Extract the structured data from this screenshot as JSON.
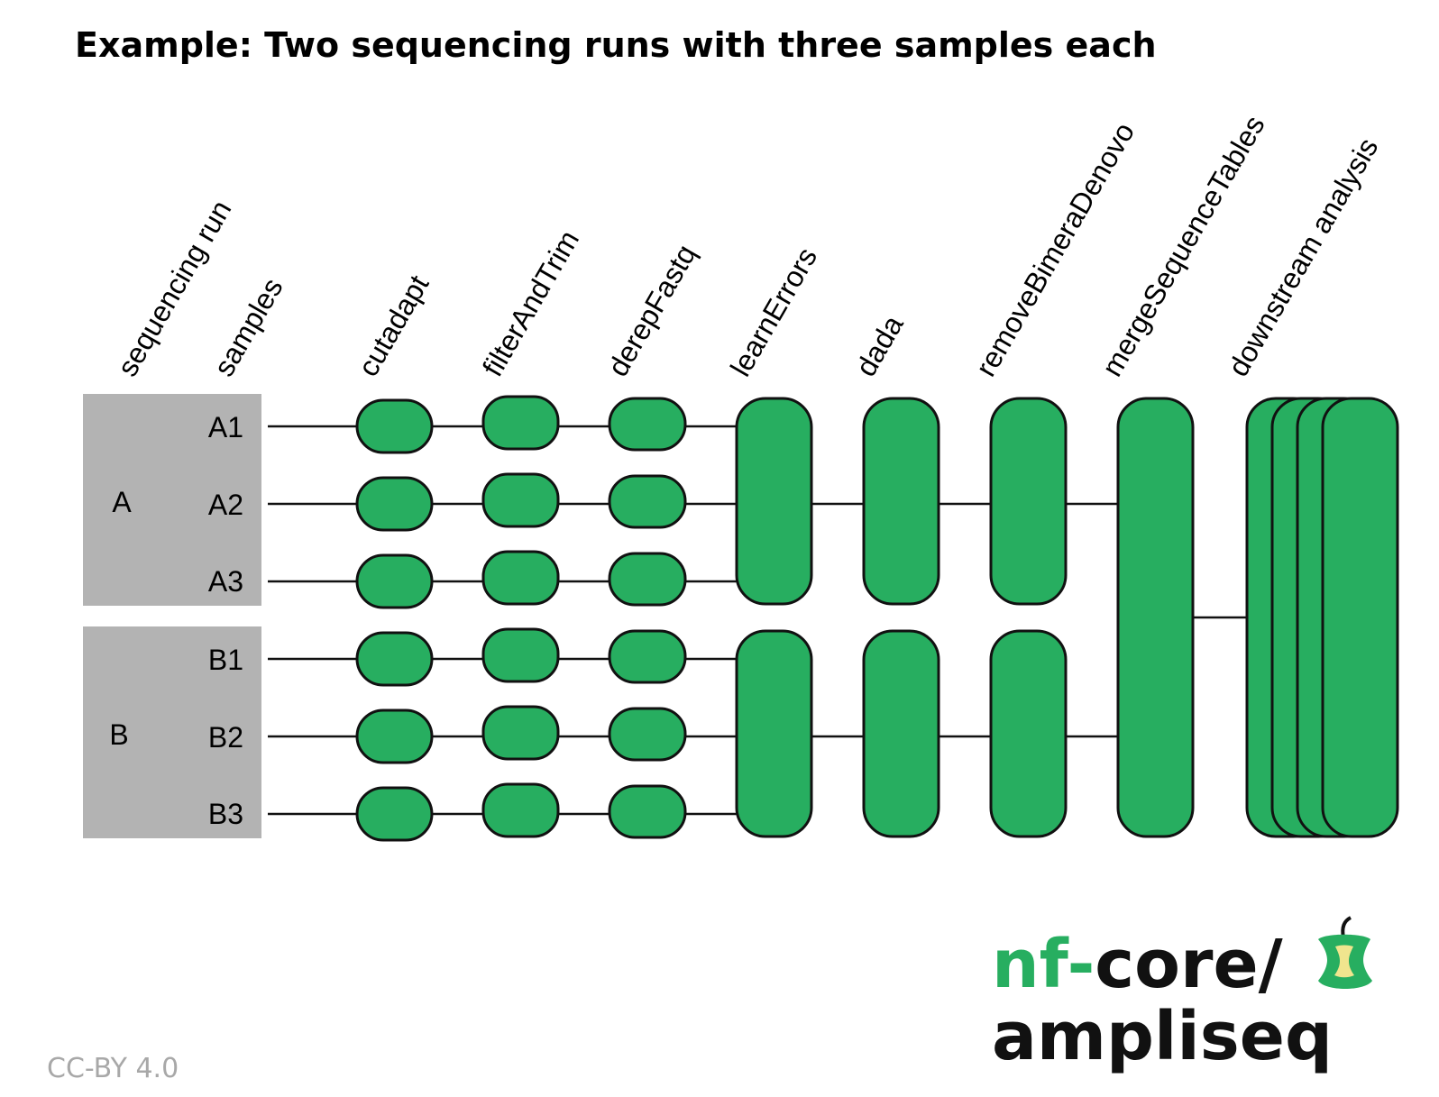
{
  "title": "Example: Two sequencing runs with three samples each",
  "columns": {
    "run": "sequencing run",
    "samples": "samples",
    "steps": [
      "cutadapt",
      "filterAndTrim",
      "derepFastq",
      "learnErrors",
      "dada",
      "removeBimeraDenovo",
      "mergeSequenceTables",
      "downstream analysis"
    ]
  },
  "runs": [
    {
      "name": "A",
      "samples": [
        "A1",
        "A2",
        "A3"
      ]
    },
    {
      "name": "B",
      "samples": [
        "B1",
        "B2",
        "B3"
      ]
    }
  ],
  "logo": {
    "prefix": "nf-",
    "suffix": "core/",
    "line2": "ampliseq"
  },
  "license": "CC-BY 4.0",
  "colors": {
    "box": "#27ae60",
    "run_background": "#b3b3b3",
    "logo_green": "#27ae60"
  }
}
